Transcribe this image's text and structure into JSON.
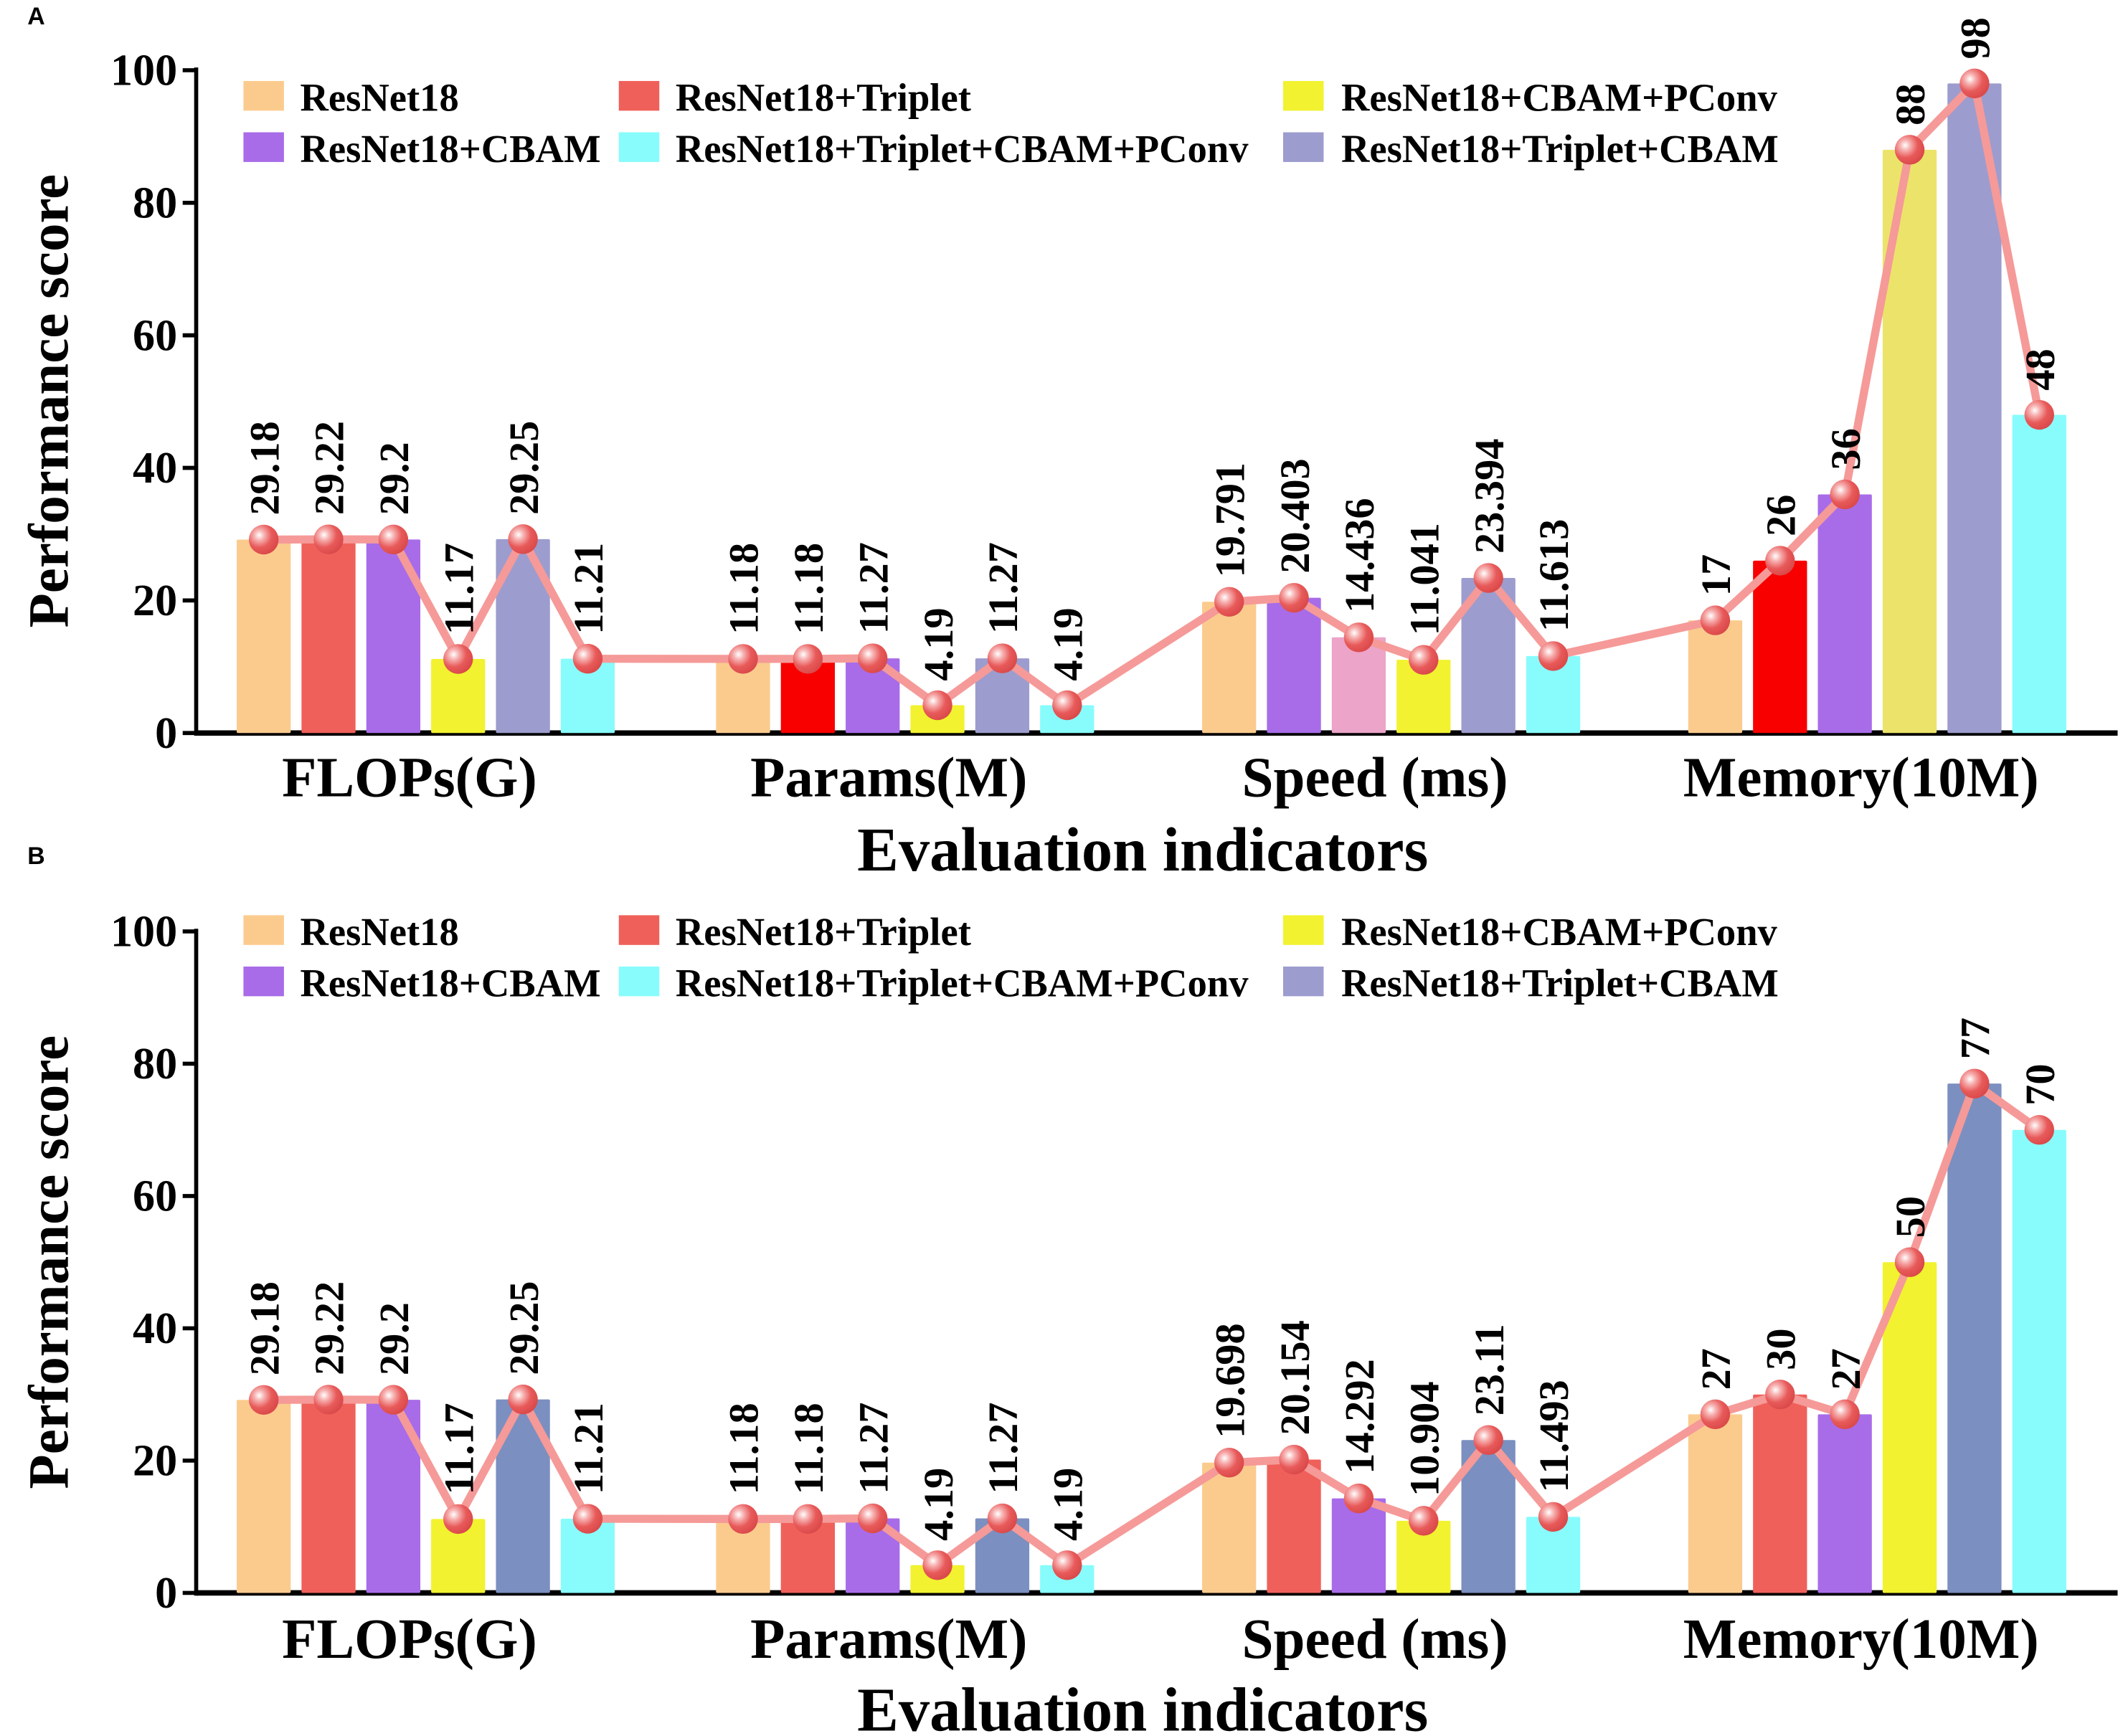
{
  "chart_data": [
    {
      "panel": "A",
      "type": "bar",
      "ylabel": "Performance score",
      "xlabel": "Evaluation indicators",
      "ylim": [
        0,
        100
      ],
      "yticks": [
        "0",
        "20",
        "40",
        "60",
        "80",
        "100"
      ],
      "categories": [
        "FLOPs(G)",
        "Params(M)",
        "Speed (ms)",
        "Memory(10M)"
      ],
      "legend": [
        {
          "name": "ResNet18",
          "color": "#fbcb8e"
        },
        {
          "name": "ResNet18+Triplet",
          "color": "#f0605a"
        },
        {
          "name": "ResNet18+CBAM+PConv",
          "color": "#f2f230"
        },
        {
          "name": "ResNet18+CBAM",
          "color": "#a86ce8"
        },
        {
          "name": "ResNet18+Triplet+CBAM+PConv",
          "color": "#88fcfc"
        },
        {
          "name": "ResNet18+Triplet+CBAM",
          "color": "#9d9cce"
        }
      ],
      "legend_placement": "top",
      "groups": [
        {
          "values": [
            29.18,
            29.22,
            29.2,
            11.17,
            29.25,
            11.21
          ],
          "labels": [
            "29.18",
            "29.22",
            "29.2",
            "11.17",
            "29.25",
            "11.21"
          ],
          "colors": [
            "#fbcb8e",
            "#f0605a",
            "#a86ce8",
            "#f2f230",
            "#9d9cce",
            "#88fcfc"
          ]
        },
        {
          "values": [
            11.18,
            11.18,
            11.27,
            4.19,
            11.27,
            4.19
          ],
          "labels": [
            "11.18",
            "11.18",
            "11.27",
            "4.19",
            "11.27",
            "4.19"
          ],
          "colors": [
            "#fbcb8e",
            "#f80000",
            "#a86ce8",
            "#f2f230",
            "#9d9cce",
            "#88fcfc"
          ]
        },
        {
          "values": [
            19.791,
            20.403,
            14.436,
            11.041,
            23.394,
            11.613
          ],
          "labels": [
            "19.791",
            "20.403",
            "14.436",
            "11.041",
            "23.394",
            "11.613"
          ],
          "colors": [
            "#fbcb8e",
            "#a86ce8",
            "#eca4c8",
            "#f2f230",
            "#9d9cce",
            "#88fcfc"
          ]
        },
        {
          "values": [
            17,
            26,
            36,
            88,
            98,
            48
          ],
          "labels": [
            "17",
            "26",
            "36",
            "88",
            "98",
            "48"
          ],
          "colors": [
            "#fbcb8e",
            "#f80000",
            "#a86ce8",
            "#ece46a",
            "#9d9cce",
            "#88fcfc"
          ]
        }
      ],
      "line_color": "#f59a98",
      "marker_color": "#e85a5a"
    },
    {
      "panel": "B",
      "type": "bar",
      "ylabel": "Performance score",
      "xlabel": "Evaluation indicators",
      "ylim": [
        0,
        100
      ],
      "yticks": [
        "0",
        "20",
        "40",
        "60",
        "80",
        "100"
      ],
      "categories": [
        "FLOPs(G)",
        "Params(M)",
        "Speed (ms)",
        "Memory(10M)"
      ],
      "legend": [
        {
          "name": "ResNet18",
          "color": "#fbcb8e"
        },
        {
          "name": "ResNet18+Triplet",
          "color": "#f0605a"
        },
        {
          "name": "ResNet18+CBAM+PConv",
          "color": "#f2f230"
        },
        {
          "name": "ResNet18+CBAM",
          "color": "#a86ce8"
        },
        {
          "name": "ResNet18+Triplet+CBAM+PConv",
          "color": "#88fcfc"
        },
        {
          "name": "ResNet18+Triplet+CBAM",
          "color": "#9d9cce"
        }
      ],
      "legend_placement": "top",
      "groups": [
        {
          "values": [
            29.18,
            29.22,
            29.2,
            11.17,
            29.25,
            11.21
          ],
          "labels": [
            "29.18",
            "29.22",
            "29.2",
            "11.17",
            "29.25",
            "11.21"
          ],
          "colors": [
            "#fbcb8e",
            "#f0605a",
            "#a86ce8",
            "#f2f230",
            "#7b8fc0",
            "#88fcfc"
          ]
        },
        {
          "values": [
            11.18,
            11.18,
            11.27,
            4.19,
            11.27,
            4.19
          ],
          "labels": [
            "11.18",
            "11.18",
            "11.27",
            "4.19",
            "11.27",
            "4.19"
          ],
          "colors": [
            "#fbcb8e",
            "#f0605a",
            "#a86ce8",
            "#f2f230",
            "#7b8fc0",
            "#88fcfc"
          ]
        },
        {
          "values": [
            19.698,
            20.154,
            14.292,
            10.904,
            23.11,
            11.493
          ],
          "labels": [
            "19.698",
            "20.154",
            "14.292",
            "10.904",
            "23.11",
            "11.493"
          ],
          "colors": [
            "#fbcb8e",
            "#f0605a",
            "#a86ce8",
            "#f2f230",
            "#7b8fc0",
            "#88fcfc"
          ]
        },
        {
          "values": [
            27,
            30,
            27,
            50,
            77,
            70
          ],
          "labels": [
            "27",
            "30",
            "27",
            "50",
            "77",
            "70"
          ],
          "colors": [
            "#fbcb8e",
            "#f0605a",
            "#a86ce8",
            "#f2f230",
            "#7b8fc0",
            "#88fcfc"
          ]
        }
      ],
      "line_color": "#f59a98",
      "marker_color": "#e85a5a"
    }
  ]
}
